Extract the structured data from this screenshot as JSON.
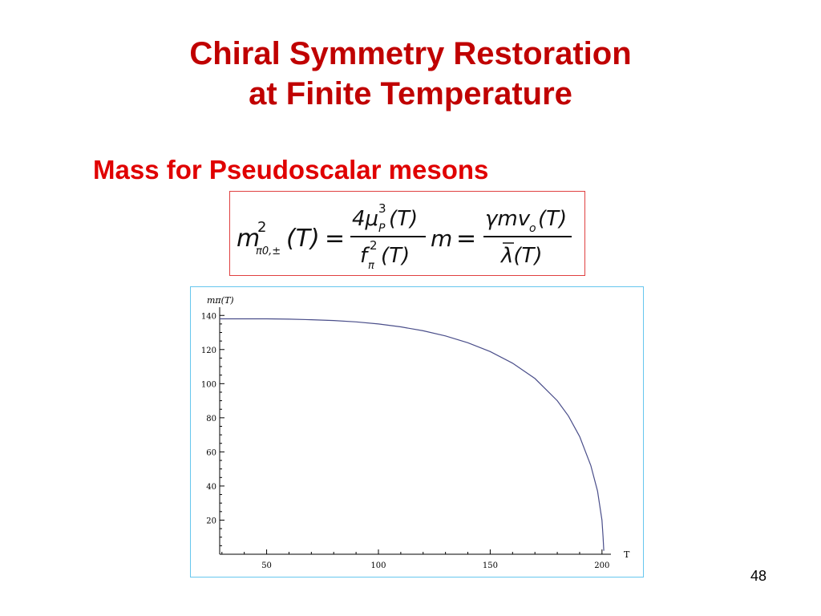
{
  "slide": {
    "title_line1": "Chiral Symmetry Restoration",
    "title_line2": "at Finite Temperature",
    "subtitle": "Mass for Pseudoscalar mesons",
    "page_number": "48"
  },
  "formula": {
    "lhs_symbol": "m",
    "lhs_superscript": "2",
    "lhs_subscript": "π0,±",
    "lhs_argument": "(T)",
    "equals": "=",
    "frac1_numerator": "4μ",
    "frac1_num_sup": "3",
    "frac1_num_sub": "P",
    "frac1_num_arg": "(T)",
    "frac1_denominator": "f",
    "frac1_den_sup": "2",
    "frac1_den_sub": "π",
    "frac1_den_arg": "(T)",
    "mid_factor": "m",
    "frac2_numerator": "γmv",
    "frac2_num_sub": "o",
    "frac2_num_arg": "(T)",
    "frac2_denominator": "λ(T)"
  },
  "chart_data": {
    "type": "line",
    "ylabel": "mπ(T)",
    "xlabel": "T",
    "xlim": [
      29,
      204
    ],
    "ylim": [
      0,
      142
    ],
    "x_ticks": [
      50,
      100,
      150,
      200
    ],
    "y_ticks": [
      20,
      40,
      60,
      80,
      100,
      120,
      140
    ],
    "x_tick_labels": [
      "50",
      "100",
      "150",
      "200"
    ],
    "y_tick_labels": [
      "20",
      "40",
      "60",
      "80",
      "100",
      "120",
      "140"
    ],
    "grid": false,
    "line_color": "#4a4e8a",
    "series": [
      {
        "x": [
          29,
          40,
          50,
          60,
          70,
          80,
          90,
          100,
          110,
          120,
          130,
          140,
          150,
          160,
          170,
          180,
          185,
          190,
          195,
          198,
          200,
          200.5,
          200.8
        ],
        "y": [
          138,
          138,
          138,
          137.8,
          137.5,
          137,
          136.2,
          135,
          133.3,
          131,
          128,
          124,
          118.8,
          112,
          103,
          90,
          81,
          69,
          52,
          37,
          20,
          10,
          2
        ]
      }
    ]
  }
}
